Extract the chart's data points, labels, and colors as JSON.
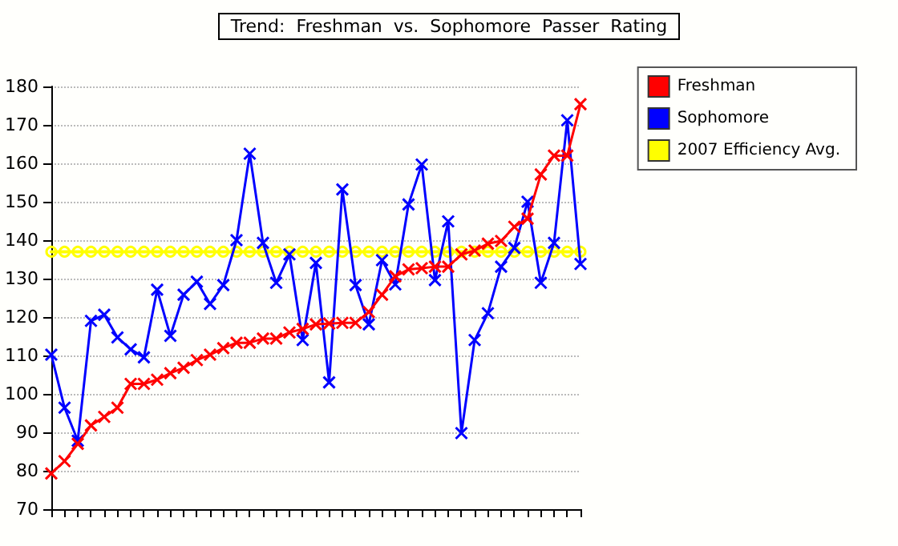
{
  "chart_data": {
    "type": "line",
    "title": "Trend:  Freshman  vs.  Sophomore  Passer  Rating",
    "categories": [
      null,
      null,
      null,
      null,
      null,
      null,
      null,
      null,
      null,
      null,
      null,
      null,
      null,
      null,
      null,
      null,
      null,
      null,
      null,
      null,
      null,
      null,
      null,
      null,
      null,
      null,
      null,
      null,
      null,
      null,
      null,
      null,
      null,
      null,
      null,
      null,
      null,
      null,
      null,
      null,
      null
    ],
    "series": [
      {
        "name": "Freshman",
        "color": "#ff0000",
        "marker": "cross",
        "values": [
          79.3,
          82.5,
          87,
          91.8,
          94,
          96.4,
          102.6,
          102.6,
          103.7,
          105.4,
          106.8,
          108.8,
          110.2,
          111.9,
          113.3,
          113.3,
          114.4,
          114.4,
          116,
          116.9,
          118.1,
          118.3,
          118.5,
          118.5,
          121.3,
          125.8,
          130.6,
          132.4,
          132.7,
          133.1,
          133.1,
          136.3,
          137.3,
          139.1,
          139.8,
          143.5,
          145.6,
          157.1,
          162,
          162,
          175.4
        ]
      },
      {
        "name": "Sophomore",
        "color": "#0000ff",
        "marker": "cross",
        "values": [
          110.2,
          96.4,
          87.8,
          119,
          120.6,
          114.7,
          111.6,
          109.5,
          127.1,
          115.1,
          125.8,
          129.2,
          123.4,
          128.3,
          140,
          162.5,
          139.3,
          128.9,
          136.3,
          114,
          134.1,
          103,
          153.2,
          128.3,
          118.1,
          134.8,
          128.5,
          149.3,
          159.7,
          129.6,
          144.9,
          89.8,
          114,
          121,
          133.1,
          138,
          150,
          128.9,
          139.3,
          171.2,
          133.8
        ]
      },
      {
        "name": "2007 Efficiency Avg.",
        "color": "#ffff00",
        "marker": "circle",
        "values": [
          137,
          137,
          137,
          137,
          137,
          137,
          137,
          137,
          137,
          137,
          137,
          137,
          137,
          137,
          137,
          137,
          137,
          137,
          137,
          137,
          137,
          137,
          137,
          137,
          137,
          137,
          137,
          137,
          137,
          137,
          137,
          137,
          137,
          137,
          137,
          137,
          137,
          137,
          137,
          137,
          137
        ]
      }
    ],
    "ylim": [
      70,
      180
    ],
    "yticks": [
      70,
      80,
      90,
      100,
      110,
      120,
      130,
      140,
      150,
      160,
      170,
      180
    ],
    "grid": "y",
    "legend": "top right",
    "line_style": "solid"
  }
}
